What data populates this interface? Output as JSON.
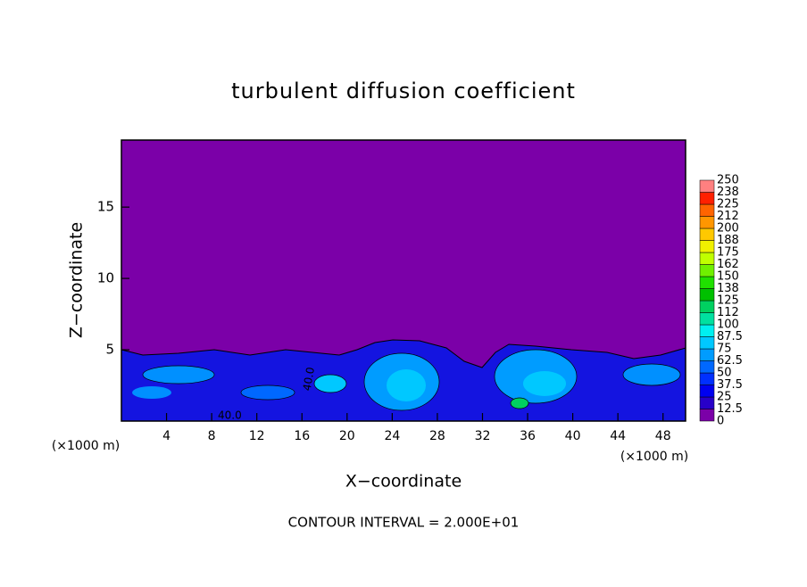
{
  "chart_data": {
    "type": "contour",
    "title": "turbulent diffusion coefficient",
    "x_label": "X−coordinate",
    "y_label": "Z−coordinate",
    "x_unit_labels": [
      "(×1000 m)",
      "(×1000 m)"
    ],
    "footer": "CONTOUR INTERVAL = 2.000E+01",
    "contour_labels": [
      "40.0",
      "40.0"
    ],
    "xlim": [
      0,
      50
    ],
    "ylim": [
      0,
      19.7
    ],
    "xticks": [
      4,
      8,
      12,
      16,
      20,
      24,
      28,
      32,
      36,
      40,
      44,
      48
    ],
    "yticks": [
      5,
      10,
      15
    ],
    "background_color": "#7b00a8",
    "colorbar": {
      "levels": [
        0,
        12.5,
        25,
        37.5,
        50,
        62.5,
        75,
        87.5,
        100,
        {
          "value": 112.5,
          "label": "112"
        },
        125,
        {
          "value": 137.5,
          "label": "138"
        },
        150,
        {
          "value": 162.5,
          "label": "162"
        },
        175,
        {
          "value": 187.5,
          "label": "188"
        },
        200,
        {
          "value": 212.5,
          "label": "212"
        },
        225,
        {
          "value": 237.5,
          "label": "238"
        },
        250
      ],
      "colors": [
        "#7b00a8",
        "#2800c8",
        "#0000f0",
        "#0030ff",
        "#0068ff",
        "#009cff",
        "#00c8ff",
        "#00f0f0",
        "#00e0a0",
        "#00d060",
        "#00c000",
        "#20e000",
        "#70f000",
        "#c0ff00",
        "#f0f000",
        "#ffc800",
        "#ff9600",
        "#ff6400",
        "#ff2000",
        "#ff8080"
      ]
    }
  }
}
